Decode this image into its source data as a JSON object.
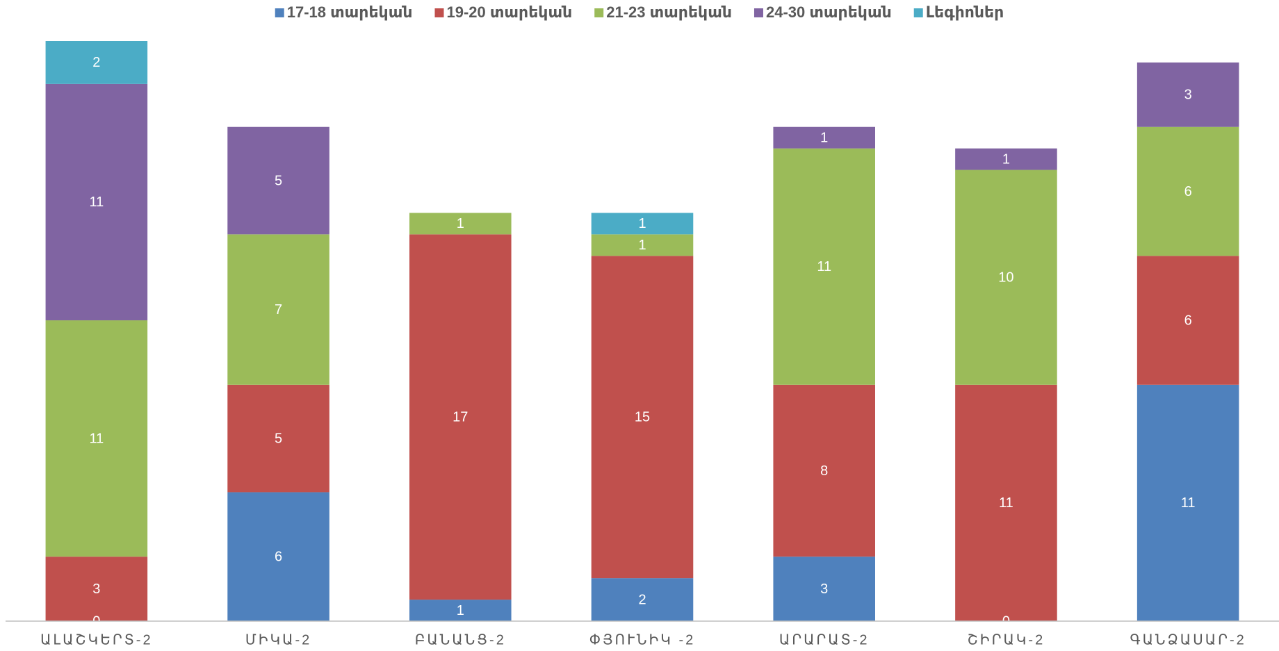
{
  "chart_data": {
    "type": "stacked_bar",
    "categories": [
      "ԱԼԱՇԿԵՐՏ-2",
      "ՄԻԿԱ-2",
      "ԲԱՆԱՆՑ-2",
      "ՓՅՈՒՆԻԿ -2",
      "ԱՐԱՐԱՏ-2",
      "ՇԻՐԱԿ-2",
      "ԳԱՆՁԱՍԱՐ-2"
    ],
    "series": [
      {
        "name": "17-18 տարեկան",
        "color": "#4f81bd",
        "values": [
          0,
          6,
          1,
          2,
          3,
          0,
          11
        ]
      },
      {
        "name": "19-20 տարեկան",
        "color": "#c0504d",
        "values": [
          3,
          5,
          17,
          15,
          8,
          11,
          6
        ]
      },
      {
        "name": "21-23 տարեկան",
        "color": "#9bbb59",
        "values": [
          11,
          7,
          1,
          1,
          11,
          10,
          6
        ]
      },
      {
        "name": "24-30 տարեկան",
        "color": "#8064a2",
        "values": [
          11,
          5,
          null,
          null,
          1,
          1,
          3
        ]
      },
      {
        "name": "Լեգիոներ",
        "color": "#4bacc6",
        "values": [
          2,
          null,
          null,
          1,
          null,
          null,
          null
        ]
      }
    ],
    "ylim": [
      0,
      27
    ],
    "legend": "top"
  }
}
